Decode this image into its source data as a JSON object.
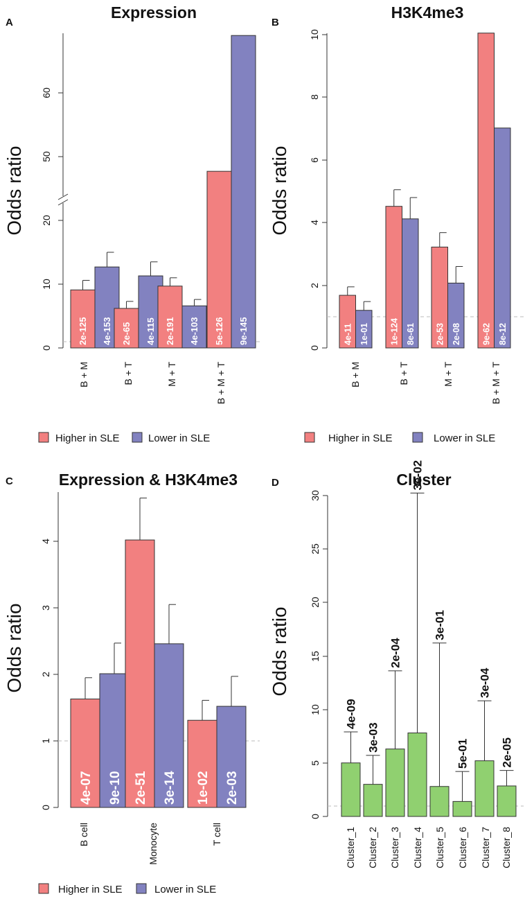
{
  "colors": {
    "higher": "#f28080",
    "lower": "#8282c0",
    "cluster": "#90d070",
    "axis": "#333333",
    "ref": "#bbbbbb"
  },
  "chart_data": [
    {
      "id": "A",
      "panel_label": "A",
      "type": "bar",
      "title": "Expression",
      "ylabel": "Odds ratio",
      "y_break": [
        25,
        45
      ],
      "ylim_lower": [
        0,
        25
      ],
      "ylim_upper": [
        45,
        69
      ],
      "yticks": [
        "0",
        "10",
        "20",
        "50",
        "60"
      ],
      "ref_line": 1,
      "categories": [
        "B + M",
        "B + T",
        "M + T",
        "B + M + T"
      ],
      "series": [
        {
          "name": "Higher in SLE",
          "values": [
            9.1,
            6.2,
            9.7,
            47.7
          ],
          "errors": [
            10.6,
            7.3,
            11.0,
            null
          ],
          "labels": [
            "2e-125",
            "2e-65",
            "2e-191",
            "5e-126"
          ]
        },
        {
          "name": "Lower in SLE",
          "values": [
            12.7,
            11.3,
            6.6,
            69
          ],
          "errors": [
            15.0,
            13.5,
            7.6,
            null
          ],
          "labels": [
            "4e-153",
            "4e-115",
            "4e-103",
            "9e-145"
          ]
        }
      ],
      "legend": [
        "Higher in SLE",
        "Lower in SLE"
      ]
    },
    {
      "id": "B",
      "panel_label": "B",
      "type": "bar",
      "title": "H3K4me3",
      "ylabel": "Odds ratio",
      "ylim": [
        0,
        10
      ],
      "yticks": [
        "0",
        "2",
        "4",
        "6",
        "8",
        "10"
      ],
      "ref_line": 1,
      "categories": [
        "B + M",
        "B + T",
        "M + T",
        "B + M + T"
      ],
      "series": [
        {
          "name": "Higher in SLE",
          "values": [
            1.68,
            4.52,
            3.22,
            10.05
          ],
          "errors": [
            1.95,
            5.05,
            3.68,
            null
          ],
          "labels": [
            "4e-11",
            "1e-124",
            "2e-53",
            "9e-62"
          ]
        },
        {
          "name": "Lower in SLE",
          "values": [
            1.2,
            4.12,
            2.07,
            7.02
          ],
          "errors": [
            1.48,
            4.8,
            2.6,
            null
          ],
          "labels": [
            "1e-01",
            "8e-61",
            "2e-08",
            "8e-12"
          ]
        }
      ],
      "legend": [
        "Higher in SLE",
        "Lower in SLE"
      ]
    },
    {
      "id": "C",
      "panel_label": "C",
      "type": "bar",
      "title": "Expression & H3K4me3",
      "ylabel": "Odds ratio",
      "ylim": [
        0,
        4.65
      ],
      "yticks": [
        "0",
        "1",
        "2",
        "3",
        "4"
      ],
      "ref_line": 1,
      "categories": [
        "B cell",
        "Monocyte",
        "T cell"
      ],
      "series": [
        {
          "name": "Higher in SLE",
          "values": [
            1.63,
            4.02,
            1.31
          ],
          "errors": [
            1.95,
            4.65,
            1.61
          ],
          "labels": [
            "4e-07",
            "2e-51",
            "1e-02"
          ]
        },
        {
          "name": "Lower in SLE",
          "values": [
            2.01,
            2.46,
            1.52
          ],
          "errors": [
            2.47,
            3.05,
            1.97
          ],
          "labels": [
            "9e-10",
            "3e-14",
            "2e-03"
          ]
        }
      ],
      "legend": [
        "Higher in SLE",
        "Lower in SLE"
      ]
    },
    {
      "id": "D",
      "panel_label": "D",
      "type": "bar",
      "title": "Cluster",
      "ylabel": "Odds ratio",
      "ylim": [
        0,
        30
      ],
      "yticks": [
        "0",
        "5",
        "10",
        "15",
        "20",
        "25",
        "30"
      ],
      "ref_line": 1,
      "categories": [
        "Cluster_1",
        "Cluster_2",
        "Cluster_3",
        "Cluster_4",
        "Cluster_5",
        "Cluster_6",
        "Cluster_7",
        "Cluster_8"
      ],
      "series": [
        {
          "name": "Cluster",
          "values": [
            5.0,
            3.0,
            6.3,
            7.8,
            2.8,
            1.4,
            5.2,
            2.85
          ],
          "errors": [
            7.9,
            5.7,
            13.6,
            30.2,
            16.2,
            4.2,
            10.8,
            4.3
          ],
          "labels": [
            "4e-09",
            "3e-03",
            "2e-04",
            "3e-02",
            "3e-01",
            "5e-01",
            "3e-04",
            "2e-05"
          ]
        }
      ]
    }
  ]
}
